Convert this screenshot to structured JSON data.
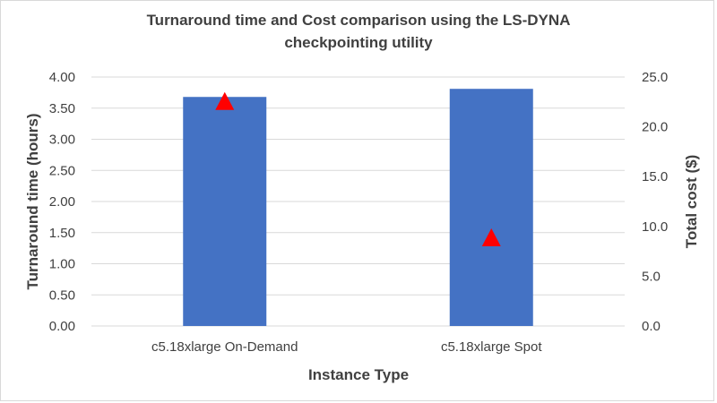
{
  "chart_data": {
    "type": "bar",
    "title": "Turnaround time and Cost comparison using the LS-DYNA checkpointing utility",
    "title_lines": [
      "Turnaround time and Cost comparison using the LS-DYNA",
      "checkpointing utility"
    ],
    "xlabel": "Instance Type",
    "ylabel": "Turnaround time (hours)",
    "y2label": "Total cost ($)",
    "categories": [
      "c5.18xlarge On-Demand",
      "c5.18xlarge Spot"
    ],
    "series": [
      {
        "name": "Turnaround time (hours)",
        "type": "bar",
        "axis": "left",
        "color": "#4472C4",
        "values": [
          3.68,
          3.81
        ]
      },
      {
        "name": "Total cost ($)",
        "type": "scatter",
        "marker": "triangle",
        "axis": "right",
        "color": "#FF0000",
        "values": [
          22.6,
          8.9
        ]
      }
    ],
    "ylim": [
      0,
      4.0
    ],
    "y2lim": [
      0,
      25.0
    ],
    "yticks": [
      "0.00",
      "0.50",
      "1.00",
      "1.50",
      "2.00",
      "2.50",
      "3.00",
      "3.50",
      "4.00"
    ],
    "y2ticks": [
      "0.0",
      "5.0",
      "10.0",
      "15.0",
      "20.0",
      "25.0"
    ],
    "grid": true,
    "legend": "none"
  }
}
